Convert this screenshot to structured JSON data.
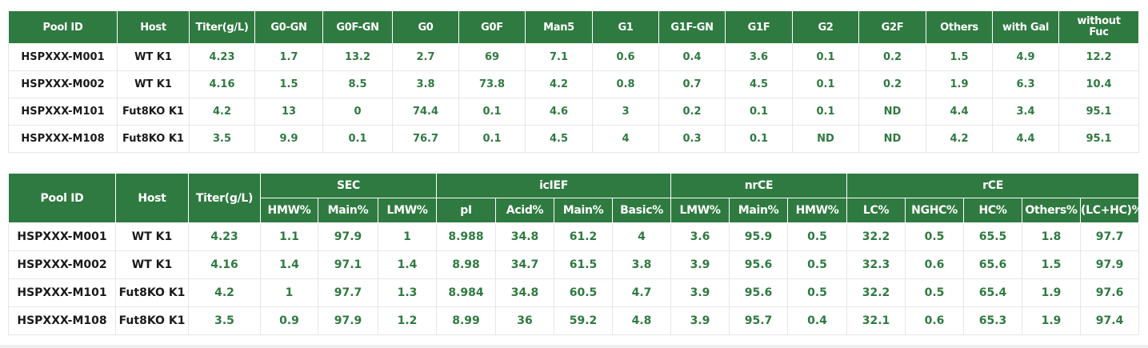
{
  "table1": {
    "headers": [
      "Pool ID",
      "Host",
      "Titer(g/L)",
      "G0-GN",
      "G0F-GN",
      "G0",
      "G0F",
      "Man5",
      "G1",
      "G1F-GN",
      "G1F",
      "G2",
      "G2F",
      "Others",
      "with Gal",
      "without Fuc"
    ],
    "rows": [
      [
        "HSPXXX-M001",
        "WT K1",
        "4.23",
        "1.7",
        "13.2",
        "2.7",
        "69",
        "7.1",
        "0.6",
        "0.4",
        "3.6",
        "0.1",
        "0.2",
        "1.5",
        "4.9",
        "12.2"
      ],
      [
        "HSPXXX-M002",
        "WT K1",
        "4.16",
        "1.5",
        "8.5",
        "3.8",
        "73.8",
        "4.2",
        "0.8",
        "0.7",
        "4.5",
        "0.1",
        "0.2",
        "1.9",
        "6.3",
        "10.4"
      ],
      [
        "HSPXXX-M101",
        "Fut8KO K1",
        "4.2",
        "13",
        "0",
        "74.4",
        "0.1",
        "4.6",
        "3",
        "0.2",
        "0.1",
        "0.1",
        "ND",
        "4.4",
        "3.4",
        "95.1"
      ],
      [
        "HSPXXX-M108",
        "Fut8KO K1",
        "3.5",
        "9.9",
        "0.1",
        "76.7",
        "0.1",
        "4.5",
        "4",
        "0.3",
        "0.1",
        "ND",
        "ND",
        "4.2",
        "4.4",
        "95.1"
      ]
    ]
  },
  "table2": {
    "headers": [
      "Pool ID",
      "Host",
      "Titer(g/L)"
    ],
    "groups": [
      {
        "label": "SEC",
        "columns": [
          "HMW%",
          "Main%",
          "LMW%"
        ]
      },
      {
        "label": "icIEF",
        "columns": [
          "pI",
          "Acid%",
          "Main%",
          "Basic%"
        ]
      },
      {
        "label": "nrCE",
        "columns": [
          "LMW%",
          "Main%",
          "HMW%"
        ]
      },
      {
        "label": "rCE",
        "columns": [
          "LC%",
          "NGHC%",
          "HC%",
          "Others%",
          "(LC+HC)%"
        ]
      }
    ],
    "rows": [
      [
        "HSPXXX-M001",
        "WT K1",
        "4.23",
        "1.1",
        "97.9",
        "1",
        "8.988",
        "34.8",
        "61.2",
        "4",
        "3.6",
        "95.9",
        "0.5",
        "32.2",
        "0.5",
        "65.5",
        "1.8",
        "97.7"
      ],
      [
        "HSPXXX-M002",
        "WT K1",
        "4.16",
        "1.4",
        "97.1",
        "1.4",
        "8.98",
        "34.7",
        "61.5",
        "3.8",
        "3.9",
        "95.6",
        "0.5",
        "32.3",
        "0.6",
        "65.6",
        "1.5",
        "97.9"
      ],
      [
        "HSPXXX-M101",
        "Fut8KO K1",
        "4.2",
        "1",
        "97.7",
        "1.3",
        "8.984",
        "34.8",
        "60.5",
        "4.7",
        "3.9",
        "95.6",
        "0.5",
        "32.2",
        "0.5",
        "65.4",
        "1.9",
        "97.6"
      ],
      [
        "HSPXXX-M108",
        "Fut8KO K1",
        "3.5",
        "0.9",
        "97.9",
        "1.2",
        "8.99",
        "36",
        "59.2",
        "4.8",
        "3.9",
        "95.7",
        "0.4",
        "32.1",
        "0.6",
        "65.3",
        "1.9",
        "97.4"
      ]
    ]
  }
}
